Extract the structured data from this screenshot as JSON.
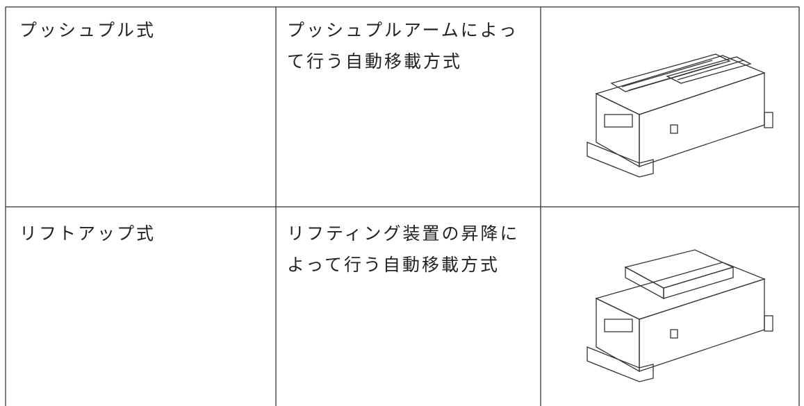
{
  "table": {
    "rows": [
      {
        "name": "プッシュプル式",
        "description": [
          "プッシュプルアームによっ",
          "て行う自動移載方式"
        ]
      },
      {
        "name": "リフトアップ式",
        "description": [
          "リフティング装置の昇降に",
          "よって行う自動移載方式"
        ]
      }
    ]
  }
}
